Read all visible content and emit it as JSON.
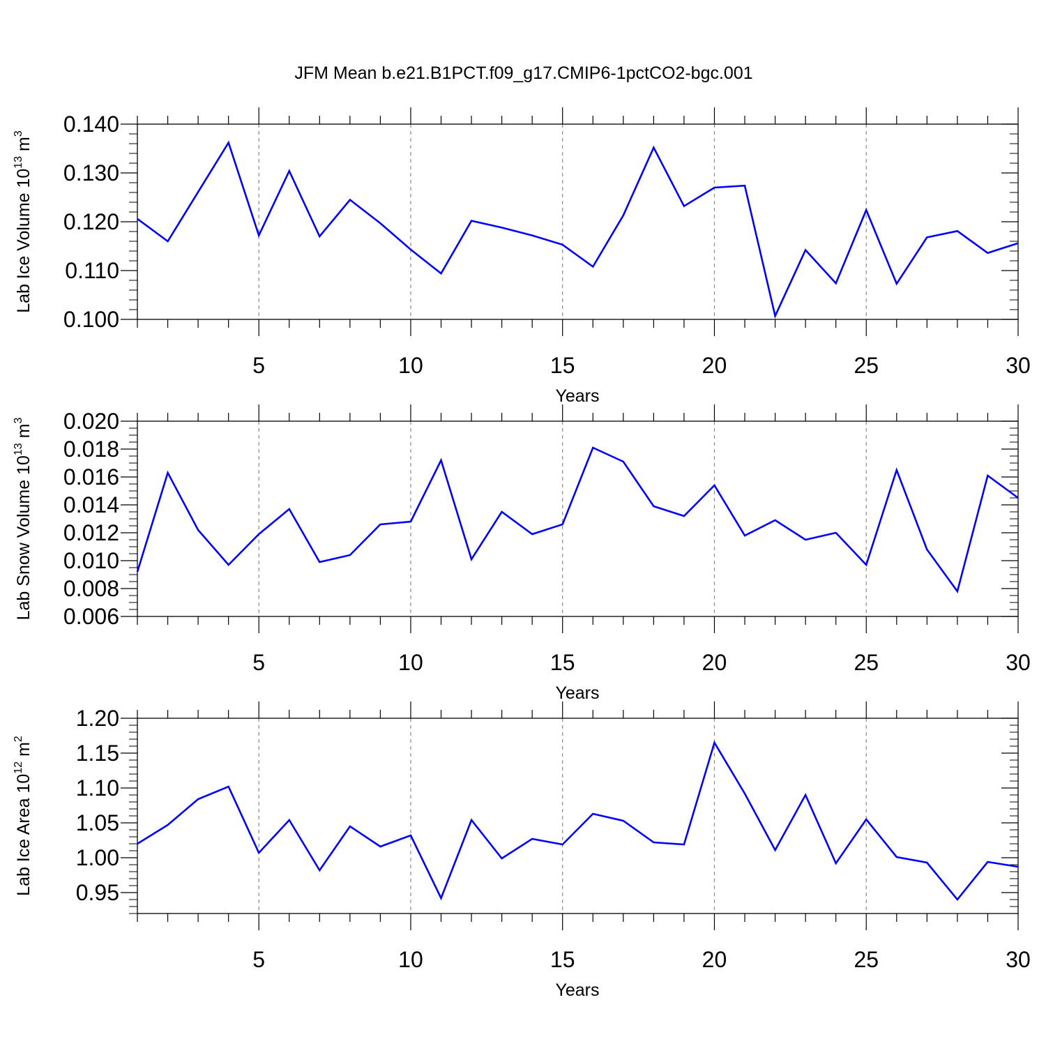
{
  "title": "JFM Mean b.e21.B1PCT.f09_g17.CMIP6-1pctCO2-bgc.001",
  "colors": {
    "line": "#0000ff",
    "axis": "#000000",
    "grid": "#888888"
  },
  "chart_data": [
    {
      "type": "line",
      "ylabel": "Lab Ice Volume 10",
      "ylabel_exp": "13",
      "ylabel_unit": " m",
      "ylabel_unit_exp": "3",
      "xlabel": "Years",
      "xlim": [
        1,
        30
      ],
      "ylim": [
        0.1,
        0.14
      ],
      "xticks": [
        5,
        10,
        15,
        20,
        25,
        30
      ],
      "xtick_labels": [
        "5",
        "10",
        "15",
        "20",
        "25",
        "30"
      ],
      "yticks": [
        0.1,
        0.11,
        0.12,
        0.13,
        0.14
      ],
      "ytick_labels": [
        "0.100",
        "0.110",
        "0.120",
        "0.130",
        "0.140"
      ],
      "yminor_step": 0.002,
      "x": [
        1,
        2,
        3,
        4,
        5,
        6,
        7,
        8,
        9,
        10,
        11,
        12,
        13,
        14,
        15,
        16,
        17,
        18,
        19,
        20,
        21,
        22,
        23,
        24,
        25,
        26,
        27,
        28,
        29,
        30
      ],
      "y": [
        0.1206,
        0.116,
        0.1261,
        0.1362,
        0.1172,
        0.1304,
        0.117,
        0.1245,
        0.1197,
        0.1143,
        0.1094,
        0.1202,
        0.1188,
        0.1172,
        0.1153,
        0.1108,
        0.1213,
        0.1352,
        0.1232,
        0.127,
        0.1274,
        0.1007,
        0.1142,
        0.1074,
        0.1224,
        0.1073,
        0.1168,
        0.1181,
        0.1136,
        0.1156
      ]
    },
    {
      "type": "line",
      "ylabel": "Lab Snow Volume 10",
      "ylabel_exp": "13",
      "ylabel_unit": " m",
      "ylabel_unit_exp": "3",
      "xlabel": "Years",
      "xlim": [
        1,
        30
      ],
      "ylim": [
        0.006,
        0.02
      ],
      "xticks": [
        5,
        10,
        15,
        20,
        25,
        30
      ],
      "xtick_labels": [
        "5",
        "10",
        "15",
        "20",
        "25",
        "30"
      ],
      "yticks": [
        0.006,
        0.008,
        0.01,
        0.012,
        0.014,
        0.016,
        0.018,
        0.02
      ],
      "ytick_labels": [
        "0.006",
        "0.008",
        "0.010",
        "0.012",
        "0.014",
        "0.016",
        "0.018",
        "0.020"
      ],
      "yminor_step": 0.0005,
      "x": [
        1,
        2,
        3,
        4,
        5,
        6,
        7,
        8,
        9,
        10,
        11,
        12,
        13,
        14,
        15,
        16,
        17,
        18,
        19,
        20,
        21,
        22,
        23,
        24,
        25,
        26,
        27,
        28,
        29,
        30
      ],
      "y": [
        0.0092,
        0.0163,
        0.0122,
        0.0097,
        0.0119,
        0.0137,
        0.0099,
        0.0104,
        0.0126,
        0.0128,
        0.0172,
        0.0101,
        0.0135,
        0.0119,
        0.0126,
        0.0181,
        0.0171,
        0.0139,
        0.0132,
        0.0154,
        0.0118,
        0.0129,
        0.0115,
        0.012,
        0.0097,
        0.0165,
        0.0108,
        0.0078,
        0.0161,
        0.0145
      ]
    },
    {
      "type": "line",
      "ylabel": "Lab Ice Area 10",
      "ylabel_exp": "12",
      "ylabel_unit": " m",
      "ylabel_unit_exp": "2",
      "xlabel": "Years",
      "xlim": [
        1,
        30
      ],
      "ylim": [
        0.92,
        1.2
      ],
      "xticks": [
        5,
        10,
        15,
        20,
        25,
        30
      ],
      "xtick_labels": [
        "5",
        "10",
        "15",
        "20",
        "25",
        "30"
      ],
      "yticks": [
        0.95,
        1.0,
        1.05,
        1.1,
        1.15,
        1.2
      ],
      "ytick_labels": [
        "0.95",
        "1.00",
        "1.05",
        "1.10",
        "1.15",
        "1.20"
      ],
      "yminor_step": 0.01,
      "x": [
        1,
        2,
        3,
        4,
        5,
        6,
        7,
        8,
        9,
        10,
        11,
        12,
        13,
        14,
        15,
        16,
        17,
        18,
        19,
        20,
        21,
        22,
        23,
        24,
        25,
        26,
        27,
        28,
        29,
        30
      ],
      "y": [
        1.02,
        1.047,
        1.084,
        1.102,
        1.007,
        1.054,
        0.982,
        1.045,
        1.016,
        1.032,
        0.942,
        1.054,
        0.999,
        1.027,
        1.019,
        1.063,
        1.053,
        1.022,
        1.019,
        1.165,
        1.092,
        1.011,
        1.09,
        0.992,
        1.055,
        1.001,
        0.993,
        0.94,
        0.994,
        0.987
      ]
    }
  ]
}
